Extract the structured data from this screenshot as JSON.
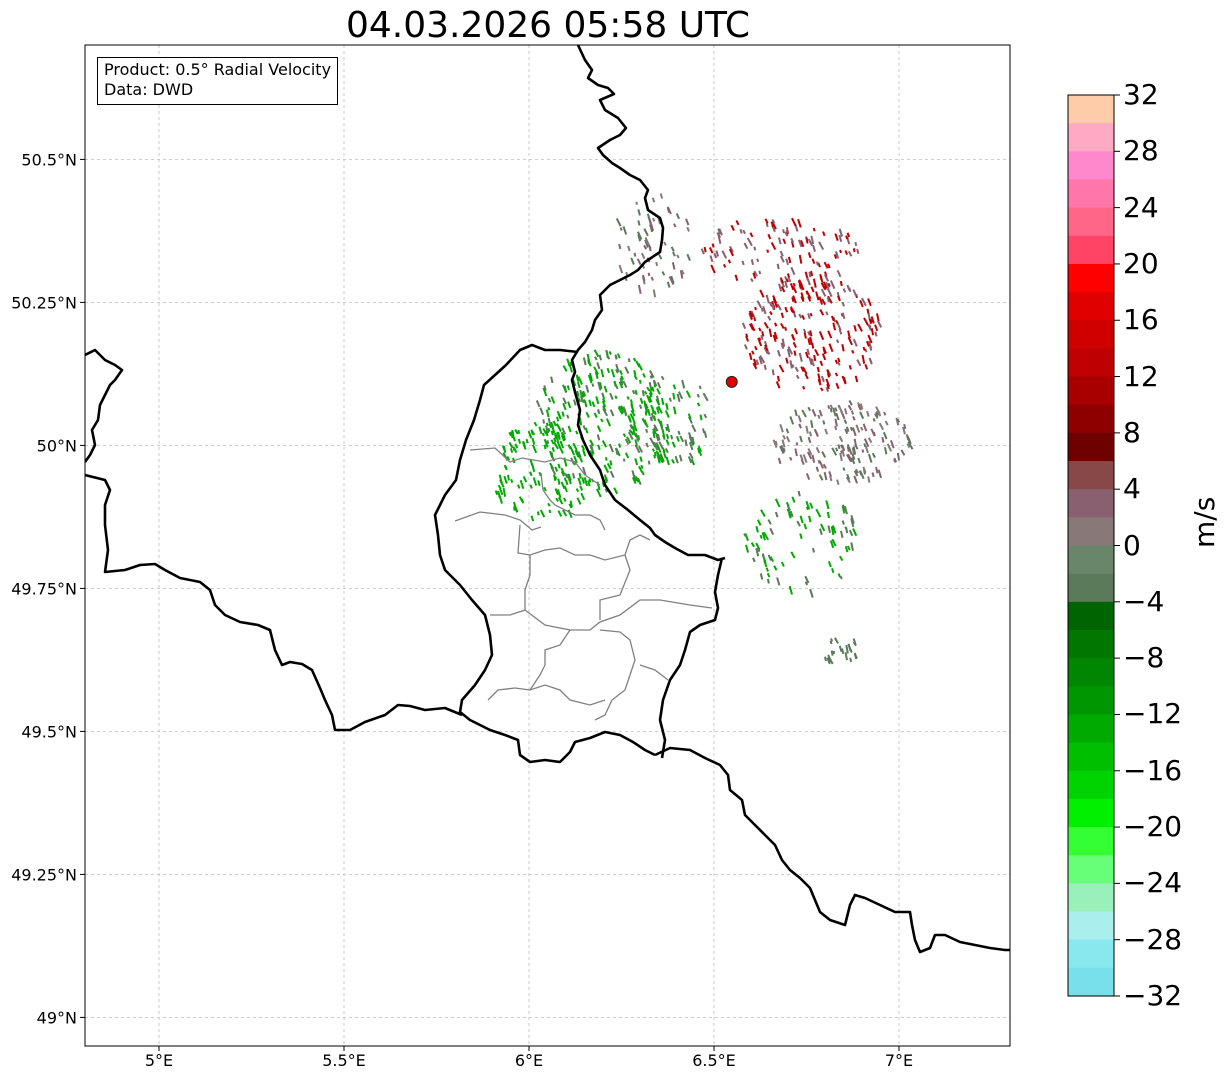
{
  "title": "04.03.2026 05:58 UTC",
  "info": {
    "product": "Product: 0.5° Radial Velocity",
    "source": "Data: DWD"
  },
  "map": {
    "lon_range": [
      4.8,
      7.3
    ],
    "lat_range": [
      48.95,
      50.7
    ],
    "lon_ticks": [
      5.0,
      5.5,
      6.0,
      6.5,
      7.0
    ],
    "lon_tick_labels": [
      "5°E",
      "5.5°E",
      "6°E",
      "6.5°E",
      "7°E"
    ],
    "lat_ticks": [
      49.0,
      49.25,
      49.5,
      49.75,
      50.0,
      50.25,
      50.5
    ],
    "lat_tick_labels": [
      "49°N",
      "49.25°N",
      "49.5°N",
      "49.75°N",
      "50°N",
      "50.25°N",
      "50.5°N"
    ],
    "radar_site": {
      "lon": 6.548,
      "lat": 50.111,
      "color": "#e00000"
    }
  },
  "colorbar": {
    "unit": "m/s",
    "vmin": -32,
    "vmax": 32,
    "ticks": [
      32,
      28,
      24,
      20,
      16,
      12,
      8,
      4,
      0,
      -4,
      -8,
      -12,
      -16,
      -20,
      -24,
      -28,
      -32
    ],
    "tick_labels": [
      "32",
      "28",
      "24",
      "20",
      "16",
      "12",
      "8",
      "4",
      "0",
      "−4",
      "−8",
      "−12",
      "−16",
      "−20",
      "−24",
      "−28",
      "−32"
    ],
    "colors_top_to_bottom": [
      "#ffccaa",
      "#ffaac4",
      "#ff88cc",
      "#ff77aa",
      "#ff6688",
      "#ff4466",
      "#ff0000",
      "#e10000",
      "#d00000",
      "#bf0000",
      "#a80000",
      "#8e0000",
      "#6e0000",
      "#884848",
      "#886070",
      "#887878",
      "#6a866a",
      "#5a7a5a",
      "#006400",
      "#007800",
      "#008600",
      "#009600",
      "#00aa00",
      "#00be00",
      "#00d400",
      "#00f000",
      "#33ff33",
      "#66ff77",
      "#99f0bb",
      "#aaeeee",
      "#88e8ee",
      "#77e0e8"
    ],
    "colors": {
      "approach_strong": "#00aa00",
      "approach_weak": "#5a7a5a",
      "neutral": "#887878",
      "recede_weak": "#886070",
      "recede_strong": "#bf0000"
    }
  }
}
